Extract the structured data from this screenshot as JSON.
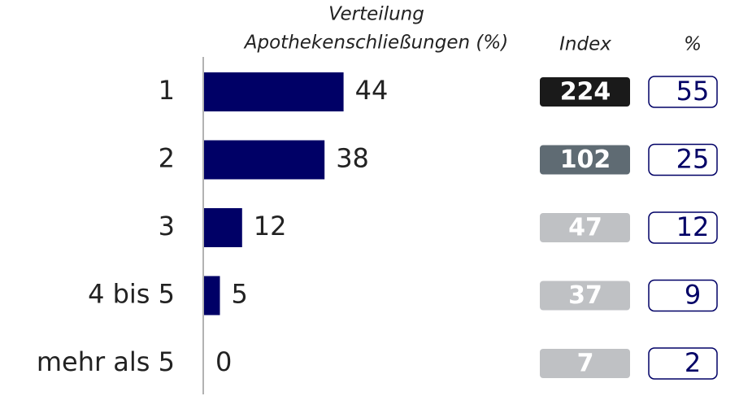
{
  "chart_data": {
    "type": "bar",
    "title": [
      "Verteilung",
      "Apothekenschließungen (%)"
    ],
    "categories": [
      "1",
      "2",
      "3",
      "4 bis 5",
      "mehr als 5"
    ],
    "values": [
      44,
      38,
      12,
      5,
      0
    ],
    "color": "#000066",
    "index": {
      "title": "Index",
      "values": [
        224,
        102,
        47,
        37,
        7
      ],
      "colors": [
        "#1a1a1a",
        "#5f6b73",
        "#bfc1c4",
        "#bfc1c4",
        "#bfc1c4"
      ]
    },
    "percent": {
      "title": "%",
      "values": [
        55,
        25,
        12,
        9,
        2
      ],
      "color": "#000066"
    }
  }
}
